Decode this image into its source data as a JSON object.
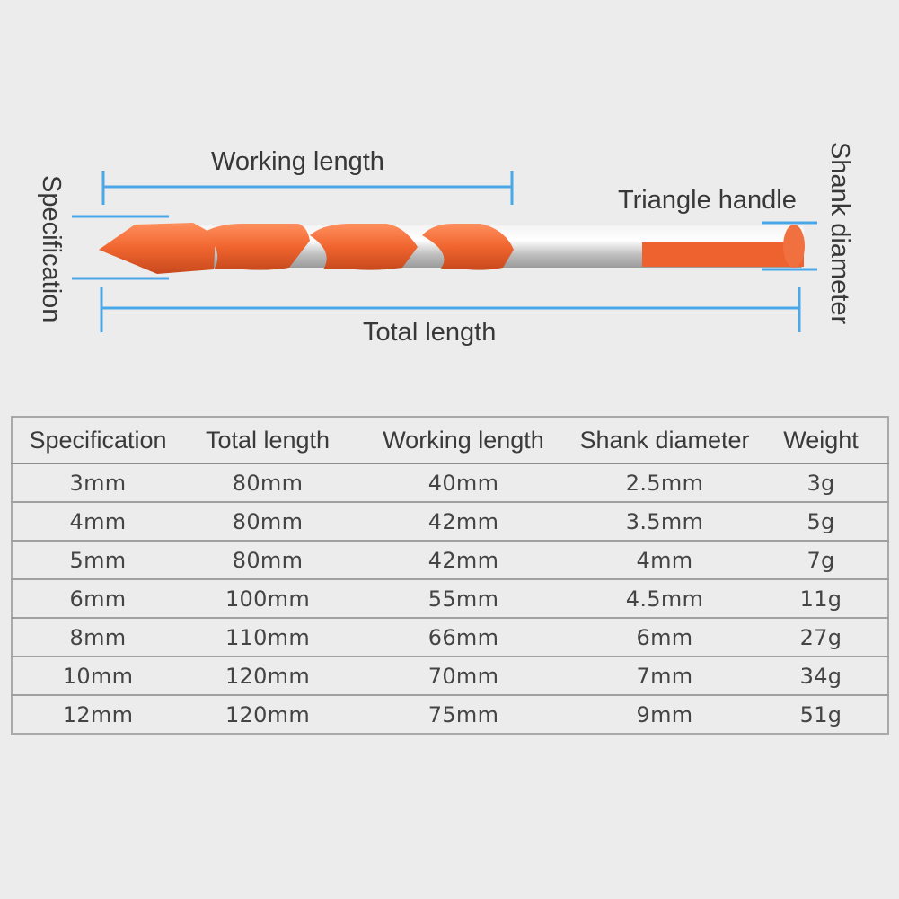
{
  "diagram": {
    "working_length_label": "Working length",
    "total_length_label": "Total length",
    "specification_label": "Specification",
    "triangle_handle_label": "Triangle handle",
    "shank_diameter_label": "Shank diameter",
    "colors": {
      "dimension_line": "#4aa8e8",
      "flute_orange": "#f0693a",
      "shank_silver": "#c9c9c9"
    }
  },
  "table": {
    "headers": [
      "Specification",
      "Total length",
      "Working length",
      "Shank diameter",
      "Weight"
    ],
    "rows": [
      [
        "3mm",
        "80mm",
        "40mm",
        "2.5mm",
        "3g"
      ],
      [
        "4mm",
        "80mm",
        "42mm",
        "3.5mm",
        "5g"
      ],
      [
        "5mm",
        "80mm",
        "42mm",
        "4mm",
        "7g"
      ],
      [
        "6mm",
        "100mm",
        "55mm",
        "4.5mm",
        "11g"
      ],
      [
        "8mm",
        "110mm",
        "66mm",
        "6mm",
        "27g"
      ],
      [
        "10mm",
        "120mm",
        "70mm",
        "7mm",
        "34g"
      ],
      [
        "12mm",
        "120mm",
        "75mm",
        "9mm",
        "51g"
      ]
    ]
  }
}
